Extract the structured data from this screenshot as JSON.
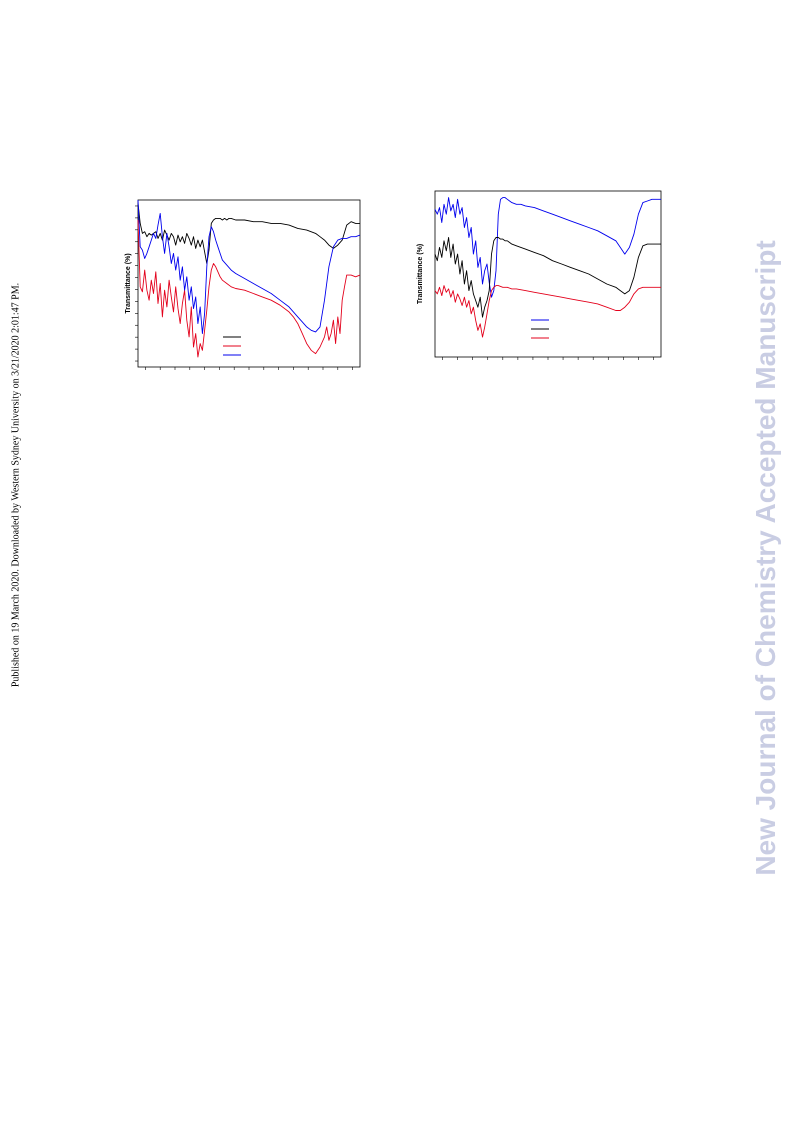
{
  "sidebar_note": "Published on 19 March 2020. Downloaded by Western Sydney University on 3/21/2020 2:01:47 PM.",
  "watermark": "New Journal of Chemistry Accepted Manuscript",
  "colors": {
    "black": "#000000",
    "red": "#e3001b",
    "blue": "#0000ee"
  },
  "chart_data": [
    {
      "type": "line",
      "ylabel": "Transmittance (%)",
      "xlim": [
        0,
        100
      ],
      "ylim": [
        0,
        100
      ],
      "grid": false,
      "legend": "lower-middle",
      "series": [
        {
          "color": "#000000",
          "x": [
            0,
            1,
            2,
            3,
            4,
            5,
            6,
            7,
            8,
            9,
            10,
            11,
            12,
            13,
            14,
            15,
            16,
            17,
            18,
            19,
            20,
            21,
            22,
            23,
            24,
            25,
            26,
            27,
            28,
            29,
            30,
            31,
            32,
            33,
            34,
            35,
            36,
            37,
            38,
            39,
            40,
            41,
            42,
            44,
            48,
            52,
            56,
            60,
            64,
            68,
            72,
            76,
            80,
            82,
            84,
            86,
            88,
            90,
            92,
            94,
            96,
            98,
            100
          ],
          "y": [
            98,
            86,
            80,
            81,
            78,
            80,
            79,
            80,
            81,
            77,
            80,
            76,
            82,
            79,
            76,
            80,
            78,
            73,
            79,
            75,
            78,
            74,
            80,
            77,
            73,
            78,
            71,
            76,
            72,
            76,
            69,
            62,
            70,
            86,
            88,
            89,
            89,
            89,
            88,
            89,
            88,
            89,
            89,
            88,
            88,
            87,
            87,
            86,
            86,
            85,
            83,
            82,
            80,
            78,
            76,
            73,
            71,
            73,
            76,
            85,
            87,
            86,
            86
          ]
        },
        {
          "color": "#e3001b",
          "x": [
            0,
            1,
            2,
            3,
            4,
            5,
            6,
            7,
            8,
            9,
            10,
            11,
            12,
            13,
            14,
            15,
            16,
            17,
            18,
            19,
            20,
            21,
            22,
            23,
            24,
            25,
            26,
            27,
            28,
            29,
            30,
            31,
            32,
            33,
            34,
            35,
            36,
            37,
            38,
            40,
            42,
            44,
            48,
            52,
            56,
            60,
            64,
            68,
            70,
            72,
            74,
            76,
            78,
            80,
            82,
            84,
            85,
            86,
            87,
            88,
            89,
            90,
            91,
            92,
            93,
            94,
            96,
            98,
            100
          ],
          "y": [
            88,
            48,
            45,
            58,
            46,
            40,
            52,
            44,
            57,
            38,
            50,
            30,
            46,
            36,
            52,
            42,
            33,
            48,
            35,
            26,
            38,
            46,
            28,
            18,
            36,
            12,
            20,
            6,
            14,
            10,
            22,
            34,
            48,
            58,
            62,
            60,
            57,
            54,
            52,
            50,
            48,
            47,
            46,
            44,
            42,
            40,
            37,
            33,
            30,
            26,
            20,
            14,
            10,
            8,
            12,
            18,
            24,
            16,
            20,
            28,
            14,
            30,
            20,
            40,
            48,
            55,
            55,
            54,
            55
          ]
        },
        {
          "color": "#0000ee",
          "x": [
            0,
            1,
            2,
            3,
            4,
            5,
            6,
            7,
            8,
            9,
            10,
            11,
            12,
            13,
            14,
            15,
            16,
            17,
            18,
            19,
            20,
            21,
            22,
            23,
            24,
            25,
            26,
            27,
            28,
            29,
            30,
            31,
            32,
            33,
            34,
            35,
            36,
            37,
            38,
            40,
            42,
            44,
            48,
            52,
            56,
            60,
            64,
            68,
            70,
            72,
            74,
            76,
            78,
            80,
            82,
            84,
            86,
            88,
            90,
            92,
            94,
            96,
            98,
            100
          ],
          "y": [
            100,
            72,
            70,
            65,
            68,
            72,
            76,
            80,
            77,
            85,
            92,
            78,
            68,
            80,
            72,
            62,
            68,
            58,
            66,
            52,
            60,
            46,
            54,
            40,
            48,
            35,
            42,
            26,
            36,
            20,
            32,
            60,
            78,
            84,
            81,
            76,
            72,
            68,
            64,
            61,
            58,
            56,
            53,
            50,
            47,
            44,
            40,
            36,
            33,
            30,
            27,
            24,
            22,
            21,
            24,
            40,
            60,
            72,
            76,
            77,
            77,
            78,
            78,
            79
          ]
        }
      ]
    },
    {
      "type": "line",
      "ylabel": "Transmittance (%)",
      "xlim": [
        0,
        100
      ],
      "ylim": [
        0,
        100
      ],
      "grid": false,
      "legend": "lower-middle",
      "series": [
        {
          "color": "#0000ee",
          "x": [
            0,
            1,
            2,
            3,
            4,
            5,
            6,
            7,
            8,
            9,
            10,
            11,
            12,
            13,
            14,
            15,
            16,
            17,
            18,
            19,
            20,
            21,
            22,
            23,
            24,
            25,
            26,
            27,
            28,
            29,
            30,
            31,
            32,
            33,
            34,
            36,
            38,
            40,
            44,
            48,
            52,
            56,
            60,
            64,
            68,
            72,
            76,
            80,
            82,
            84,
            86,
            88,
            90,
            92,
            94,
            96,
            98,
            100
          ],
          "y": [
            89,
            86,
            90,
            81,
            92,
            86,
            96,
            88,
            92,
            84,
            95,
            86,
            90,
            78,
            84,
            72,
            78,
            62,
            70,
            54,
            60,
            44,
            52,
            56,
            45,
            36,
            40,
            52,
            86,
            95,
            96,
            96,
            95,
            94,
            93,
            92,
            92,
            91,
            90,
            88,
            86,
            84,
            82,
            80,
            78,
            76,
            73,
            70,
            66,
            62,
            66,
            74,
            86,
            93,
            94,
            95,
            95,
            95
          ]
        },
        {
          "color": "#000000",
          "x": [
            0,
            1,
            2,
            3,
            4,
            5,
            6,
            7,
            8,
            9,
            10,
            11,
            12,
            13,
            14,
            15,
            16,
            17,
            18,
            19,
            20,
            21,
            22,
            23,
            24,
            25,
            26,
            27,
            28,
            29,
            30,
            31,
            32,
            33,
            34,
            36,
            38,
            40,
            44,
            48,
            52,
            56,
            60,
            64,
            68,
            72,
            76,
            80,
            82,
            84,
            86,
            88,
            90,
            92,
            94,
            96,
            98,
            100
          ],
          "y": [
            62,
            58,
            66,
            60,
            70,
            64,
            72,
            60,
            68,
            56,
            62,
            50,
            58,
            44,
            52,
            40,
            46,
            38,
            34,
            30,
            36,
            24,
            30,
            34,
            40,
            62,
            70,
            72,
            72,
            71,
            71,
            70,
            70,
            69,
            68,
            67,
            66,
            65,
            63,
            61,
            58,
            56,
            54,
            52,
            50,
            47,
            44,
            42,
            40,
            38,
            40,
            48,
            60,
            67,
            68,
            68,
            68,
            68
          ]
        },
        {
          "color": "#e3001b",
          "x": [
            0,
            1,
            2,
            3,
            4,
            5,
            6,
            7,
            8,
            9,
            10,
            11,
            12,
            13,
            14,
            15,
            16,
            17,
            18,
            19,
            20,
            21,
            22,
            23,
            24,
            25,
            26,
            27,
            28,
            30,
            32,
            34,
            36,
            40,
            44,
            48,
            52,
            56,
            60,
            64,
            68,
            72,
            76,
            80,
            82,
            84,
            86,
            88,
            90,
            92,
            94,
            96,
            98,
            100
          ],
          "y": [
            40,
            38,
            42,
            37,
            43,
            39,
            41,
            36,
            40,
            33,
            38,
            35,
            31,
            36,
            30,
            34,
            26,
            30,
            22,
            16,
            20,
            12,
            18,
            26,
            34,
            40,
            42,
            43,
            43,
            42,
            42,
            41,
            41,
            40,
            39,
            38,
            37,
            36,
            35,
            34,
            33,
            32,
            30,
            28,
            28,
            30,
            33,
            38,
            41,
            42,
            42,
            42,
            42,
            42
          ]
        }
      ]
    }
  ]
}
